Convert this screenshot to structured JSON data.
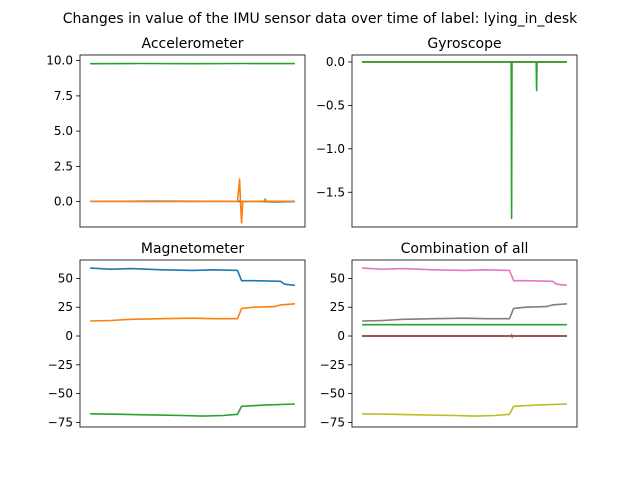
{
  "figure": {
    "suptitle": "Changes in value of the IMU sensor data over time of label: lying_in_desk"
  },
  "chart_data": [
    {
      "type": "line",
      "title": "Accelerometer",
      "x": [
        0,
        100
      ],
      "xticks": false,
      "ylim": [
        -1.8,
        10.4
      ],
      "yticks": [
        0.0,
        2.5,
        5.0,
        7.5,
        10.0
      ],
      "ytick_labels": [
        "0.0",
        "2.5",
        "5.0",
        "7.5",
        "10.0"
      ],
      "series": [
        {
          "color": "#1f77b4",
          "values": [
            [
              0,
              0.02
            ],
            [
              30,
              0.03
            ],
            [
              60,
              0.02
            ],
            [
              72,
              0.02
            ],
            [
              74,
              0.0
            ],
            [
              80,
              0.02
            ],
            [
              90,
              -0.02
            ],
            [
              100,
              0.0
            ]
          ]
        },
        {
          "color": "#ff7f0e",
          "values": [
            [
              0,
              0.02
            ],
            [
              30,
              0.0
            ],
            [
              60,
              0.02
            ],
            [
              72,
              0.02
            ],
            [
              73,
              1.6
            ],
            [
              73.5,
              -0.2
            ],
            [
              74,
              -1.5
            ],
            [
              74.5,
              0.02
            ],
            [
              85,
              0.02
            ],
            [
              85.5,
              0.2
            ],
            [
              86,
              0.02
            ],
            [
              100,
              0.02
            ]
          ]
        },
        {
          "color": "#2ca02c",
          "values": [
            [
              0,
              9.78
            ],
            [
              25,
              9.8
            ],
            [
              50,
              9.78
            ],
            [
              75,
              9.8
            ],
            [
              100,
              9.79
            ]
          ]
        }
      ]
    },
    {
      "type": "line",
      "title": "Gyroscope",
      "x": [
        0,
        100
      ],
      "xticks": false,
      "ylim": [
        -1.9,
        0.08
      ],
      "yticks": [
        0.0,
        -0.5,
        -1.0,
        -1.5
      ],
      "ytick_labels": [
        "0.0",
        "−0.5",
        "−1.0",
        "−1.5"
      ],
      "series": [
        {
          "color": "#1f77b4",
          "values": [
            [
              0,
              0.0
            ],
            [
              100,
              0.0
            ]
          ]
        },
        {
          "color": "#ff7f0e",
          "values": [
            [
              0,
              0.0
            ],
            [
              100,
              0.0
            ]
          ]
        },
        {
          "color": "#2ca02c",
          "values": [
            [
              0,
              0.0
            ],
            [
              72.8,
              0.0
            ],
            [
              73,
              -1.8
            ],
            [
              73.2,
              0.0
            ],
            [
              85,
              0.0
            ],
            [
              85.2,
              -0.33
            ],
            [
              85.4,
              0.0
            ],
            [
              100,
              0.0
            ]
          ]
        }
      ]
    },
    {
      "type": "line",
      "title": "Magnetometer",
      "x": [
        0,
        100
      ],
      "xticks": false,
      "ylim": [
        -79,
        66
      ],
      "yticks": [
        50,
        25,
        0,
        -25,
        -50,
        -75
      ],
      "ytick_labels": [
        "50",
        "25",
        "0",
        "−25",
        "−50",
        "−75"
      ],
      "series": [
        {
          "color": "#1f77b4",
          "values": [
            [
              0,
              59
            ],
            [
              10,
              58
            ],
            [
              20,
              58.5
            ],
            [
              35,
              57.5
            ],
            [
              50,
              57
            ],
            [
              60,
              57.5
            ],
            [
              72,
              57
            ],
            [
              74,
              48
            ],
            [
              80,
              48
            ],
            [
              93,
              47.5
            ],
            [
              95,
              45
            ],
            [
              100,
              44
            ]
          ]
        },
        {
          "color": "#ff7f0e",
          "values": [
            [
              0,
              13
            ],
            [
              10,
              13.5
            ],
            [
              20,
              14.5
            ],
            [
              35,
              15
            ],
            [
              50,
              15.5
            ],
            [
              60,
              15
            ],
            [
              72,
              15
            ],
            [
              74,
              24
            ],
            [
              80,
              25
            ],
            [
              90,
              25.5
            ],
            [
              93,
              27
            ],
            [
              100,
              28
            ]
          ]
        },
        {
          "color": "#2ca02c",
          "values": [
            [
              0,
              -67.5
            ],
            [
              15,
              -68
            ],
            [
              30,
              -68.5
            ],
            [
              45,
              -69
            ],
            [
              55,
              -69.5
            ],
            [
              65,
              -69
            ],
            [
              72,
              -68
            ],
            [
              74,
              -61
            ],
            [
              85,
              -60
            ],
            [
              100,
              -59
            ]
          ]
        }
      ]
    },
    {
      "type": "line",
      "title": "Combination of all",
      "x": [
        0,
        100
      ],
      "xticks": false,
      "ylim": [
        -79,
        66
      ],
      "yticks": [
        50,
        25,
        0,
        -25,
        -50,
        -75
      ],
      "ytick_labels": [
        "50",
        "25",
        "0",
        "−25",
        "−50",
        "−75"
      ],
      "series": [
        {
          "color": "#1f77b4",
          "values": [
            [
              0,
              0
            ],
            [
              100,
              0
            ]
          ]
        },
        {
          "color": "#ff7f0e",
          "values": [
            [
              0,
              0
            ],
            [
              72.8,
              0
            ],
            [
              73,
              1.5
            ],
            [
              73.3,
              -1.5
            ],
            [
              73.6,
              0
            ],
            [
              100,
              0
            ]
          ]
        },
        {
          "color": "#2ca02c",
          "values": [
            [
              0,
              9.8
            ],
            [
              100,
              9.8
            ]
          ]
        },
        {
          "color": "#d62728",
          "values": [
            [
              0,
              0
            ],
            [
              100,
              0
            ]
          ]
        },
        {
          "color": "#9467bd",
          "values": [
            [
              0,
              0
            ],
            [
              100,
              0
            ]
          ]
        },
        {
          "color": "#8c564b",
          "values": [
            [
              0,
              0
            ],
            [
              100,
              0
            ]
          ]
        },
        {
          "color": "#e377c2",
          "values": [
            [
              0,
              59
            ],
            [
              10,
              58
            ],
            [
              20,
              58.5
            ],
            [
              35,
              57.5
            ],
            [
              50,
              57
            ],
            [
              60,
              57.5
            ],
            [
              72,
              57
            ],
            [
              74,
              48
            ],
            [
              80,
              48
            ],
            [
              93,
              47.5
            ],
            [
              95,
              45
            ],
            [
              100,
              44
            ]
          ]
        },
        {
          "color": "#7f7f7f",
          "values": [
            [
              0,
              13
            ],
            [
              10,
              13.5
            ],
            [
              20,
              14.5
            ],
            [
              35,
              15
            ],
            [
              50,
              15.5
            ],
            [
              60,
              15
            ],
            [
              72,
              15
            ],
            [
              74,
              24
            ],
            [
              80,
              25
            ],
            [
              90,
              25.5
            ],
            [
              93,
              27
            ],
            [
              100,
              28
            ]
          ]
        },
        {
          "color": "#bcbd22",
          "values": [
            [
              0,
              -67.5
            ],
            [
              15,
              -68
            ],
            [
              30,
              -68.5
            ],
            [
              45,
              -69
            ],
            [
              55,
              -69.5
            ],
            [
              65,
              -69
            ],
            [
              72,
              -68
            ],
            [
              74,
              -61
            ],
            [
              85,
              -60
            ],
            [
              100,
              -59
            ]
          ]
        }
      ]
    }
  ]
}
